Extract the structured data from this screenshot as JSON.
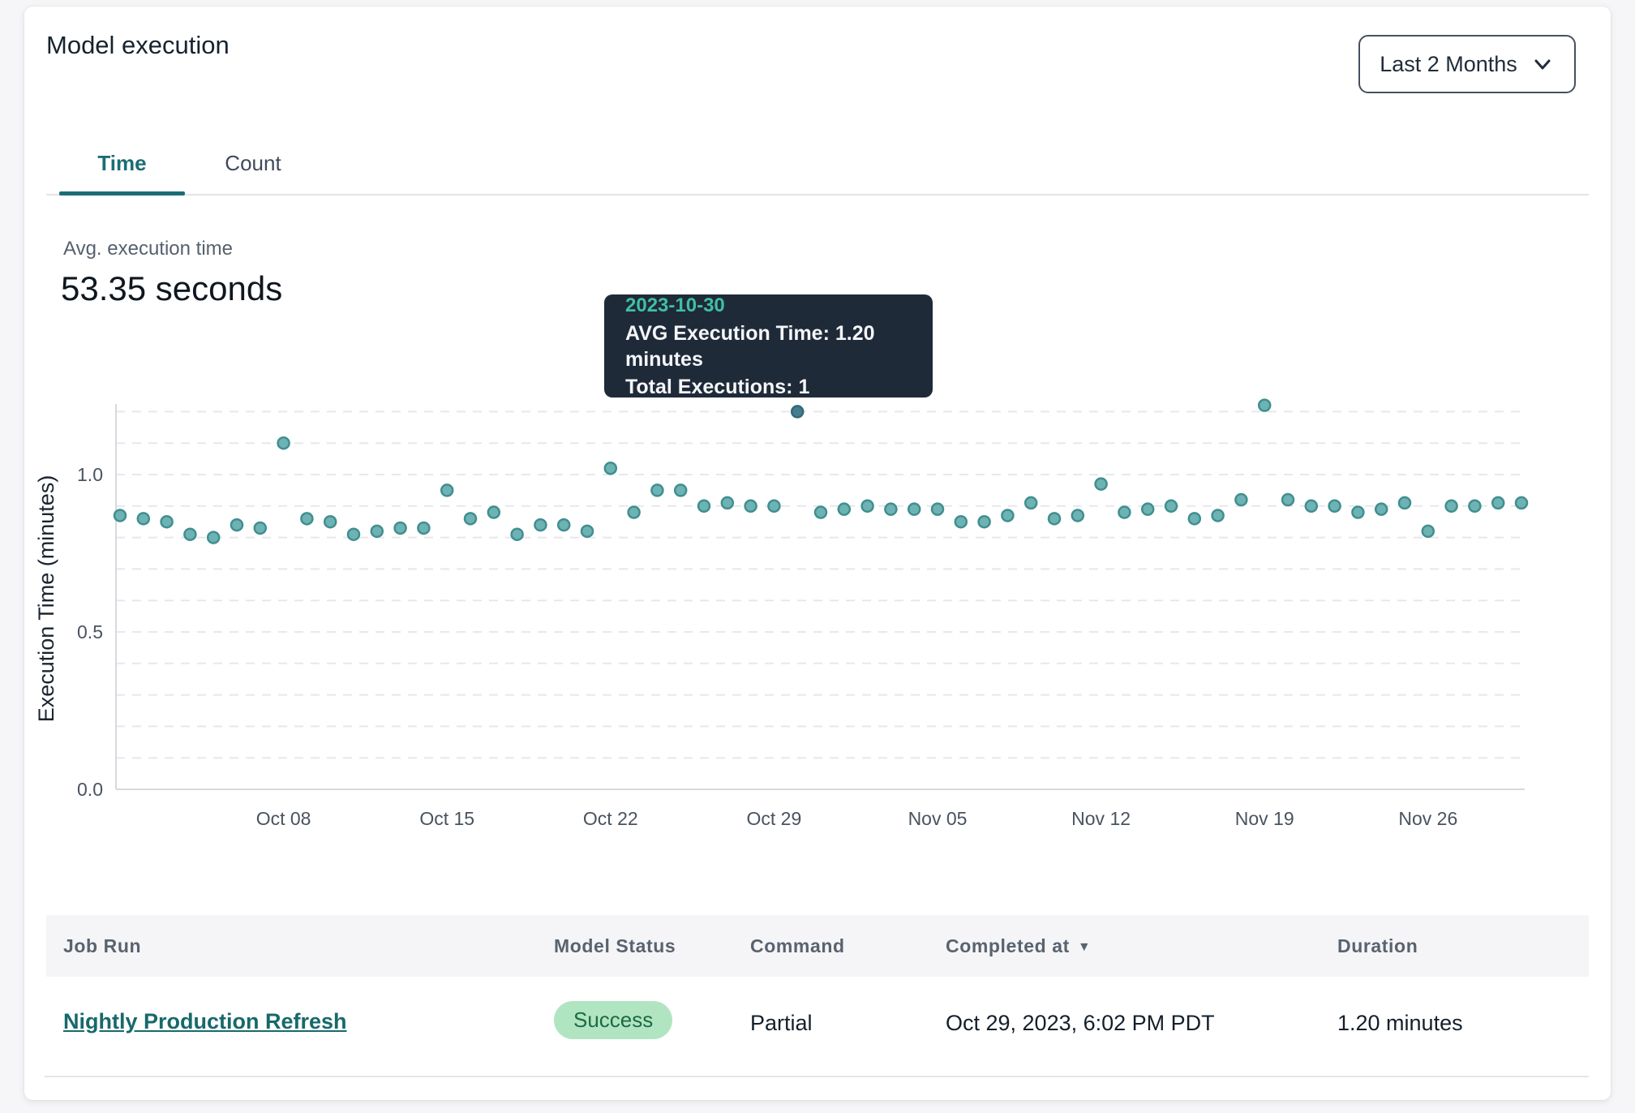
{
  "header": {
    "title": "Model execution"
  },
  "range_selector": {
    "value": "Last 2 Months"
  },
  "tabs": [
    {
      "label": "Time",
      "active": true
    },
    {
      "label": "Count",
      "active": false
    }
  ],
  "metric": {
    "label": "Avg. execution time",
    "value": "53.35 seconds"
  },
  "tooltip": {
    "date": "2023-10-30",
    "line1": "AVG Execution Time: 1.20 minutes",
    "line2": "Total Executions: 1"
  },
  "chart_data": {
    "type": "scatter",
    "title": "",
    "xlabel": "",
    "ylabel": "Execution Time (minutes)",
    "ylim": [
      0,
      1.25
    ],
    "grid_step": 0.1,
    "grid_max": 1.2,
    "grid_on": true,
    "y_ticks": [
      0.0,
      0.5,
      1.0
    ],
    "x_tick_labels": [
      "Oct 08",
      "Oct 15",
      "Oct 22",
      "Oct 29",
      "Nov 05",
      "Nov 12",
      "Nov 19",
      "Nov 26"
    ],
    "x_tick_day_index": [
      7,
      14,
      21,
      28,
      35,
      42,
      49,
      56
    ],
    "dates": [
      "2023-10-01",
      "2023-10-02",
      "2023-10-03",
      "2023-10-04",
      "2023-10-05",
      "2023-10-06",
      "2023-10-07",
      "2023-10-08",
      "2023-10-09",
      "2023-10-10",
      "2023-10-11",
      "2023-10-12",
      "2023-10-13",
      "2023-10-14",
      "2023-10-15",
      "2023-10-16",
      "2023-10-17",
      "2023-10-18",
      "2023-10-19",
      "2023-10-20",
      "2023-10-21",
      "2023-10-22",
      "2023-10-23",
      "2023-10-24",
      "2023-10-25",
      "2023-10-26",
      "2023-10-27",
      "2023-10-28",
      "2023-10-29",
      "2023-10-30",
      "2023-10-31",
      "2023-11-01",
      "2023-11-02",
      "2023-11-03",
      "2023-11-04",
      "2023-11-05",
      "2023-11-06",
      "2023-11-07",
      "2023-11-08",
      "2023-11-09",
      "2023-11-10",
      "2023-11-11",
      "2023-11-12",
      "2023-11-13",
      "2023-11-14",
      "2023-11-15",
      "2023-11-16",
      "2023-11-17",
      "2023-11-18",
      "2023-11-19",
      "2023-11-20",
      "2023-11-21",
      "2023-11-22",
      "2023-11-23",
      "2023-11-24",
      "2023-11-25",
      "2023-11-26",
      "2023-11-27",
      "2023-11-28",
      "2023-11-29",
      "2023-11-30"
    ],
    "values": [
      0.87,
      0.86,
      0.85,
      0.81,
      0.8,
      0.84,
      0.83,
      1.1,
      0.86,
      0.85,
      0.81,
      0.82,
      0.83,
      0.83,
      0.95,
      0.86,
      0.88,
      0.81,
      0.84,
      0.84,
      0.82,
      1.02,
      0.88,
      0.95,
      0.95,
      0.9,
      0.91,
      0.9,
      0.9,
      1.2,
      0.88,
      0.89,
      0.9,
      0.89,
      0.89,
      0.89,
      0.85,
      0.85,
      0.87,
      0.91,
      0.86,
      0.87,
      0.97,
      0.88,
      0.89,
      0.9,
      0.86,
      0.87,
      0.92,
      1.22,
      0.92,
      0.9,
      0.9,
      0.88,
      0.89,
      0.91,
      0.82,
      0.9,
      0.9,
      0.91,
      0.91
    ],
    "highlight_index": 29,
    "highlight_date": "2023-10-30",
    "point_color": "#6db3b4",
    "point_stroke": "#418e90",
    "highlight_fill": "#457d8e",
    "highlight_stroke": "#34687a",
    "grid_color": "#e7e8ec",
    "axis_color": "#d6d9de",
    "tick_color": "#49535f",
    "ylabel_color": "#1a242f",
    "legend": "none"
  },
  "table": {
    "headers": [
      "Job Run",
      "Model Status",
      "Command",
      "Completed at",
      "Duration"
    ],
    "sorted_column": "Completed at",
    "sort_icon": "▼",
    "rows": [
      {
        "job_run": "Nightly Production Refresh",
        "model_status": "Success",
        "command": "Partial",
        "completed_at": "Oct 29, 2023, 6:02 PM PDT",
        "duration": "1.20 minutes"
      }
    ]
  },
  "colors": {
    "accent_teal": "#1b6d75",
    "tooltip_bg": "#1f2a39",
    "tooltip_date": "#40bfa3",
    "success_bg": "#b1e5c1",
    "success_text": "#1d6a45",
    "link": "#17696b",
    "header_bg": "#f5f5f7"
  }
}
